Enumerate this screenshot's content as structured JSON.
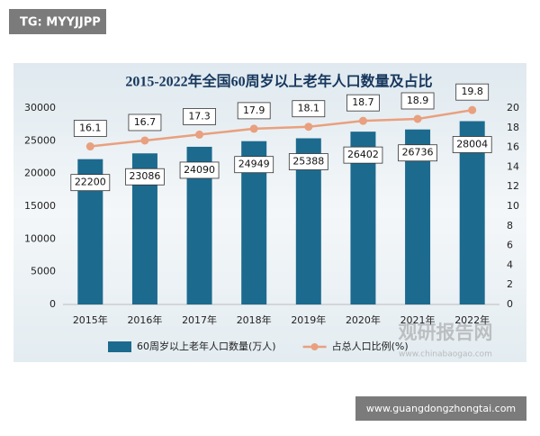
{
  "chart_data": {
    "type": "bar",
    "title": "2015-2022年全国60周岁以上老年人口数量及占比",
    "categories": [
      "2015年",
      "2016年",
      "2017年",
      "2018年",
      "2019年",
      "2020年",
      "2021年",
      "2022年"
    ],
    "series": [
      {
        "name": "60周岁以上老年人口数量(万人)",
        "color": "#1d6a8f",
        "type": "bar",
        "values": [
          22200,
          23086,
          24090,
          24949,
          25388,
          26402,
          26736,
          28004
        ]
      },
      {
        "name": "占总人口比例(%)",
        "color": "#e9a07e",
        "type": "line",
        "axis": "y2",
        "values": [
          16.1,
          16.7,
          17.3,
          17.9,
          18.1,
          18.7,
          18.9,
          19.8
        ]
      }
    ],
    "ylim": [
      0,
      30000
    ],
    "yticks": [
      0,
      5000,
      10000,
      15000,
      20000,
      25000,
      30000
    ],
    "y2lim": [
      0,
      20
    ],
    "y2ticks": [
      0,
      2,
      4,
      6,
      8,
      10,
      12,
      14,
      16,
      18,
      20
    ],
    "grid": false,
    "legend": "bottom"
  },
  "watermarks": {
    "top_left": "TG: MYYJJPP",
    "brand": "观研报告网",
    "brand_url": "www.chinabaogao.com",
    "bottom_right": "www.guangdongzhongtai.com"
  }
}
